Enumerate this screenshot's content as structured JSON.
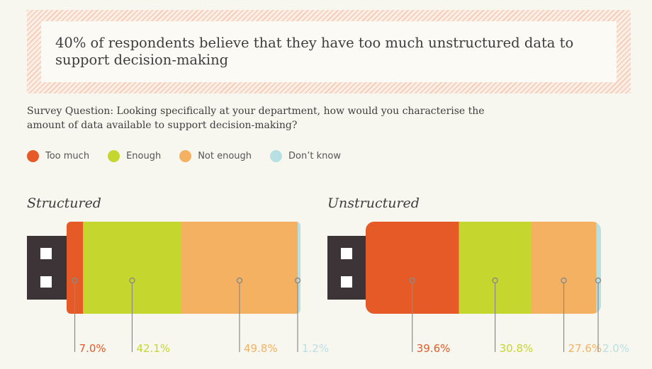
{
  "headline": "40% of respondents believe that they have too much unstructured data to support decision-making",
  "question": "Survey Question: Looking specifically at your department, how would you characterise the amount of data available to support decision-making?",
  "chart_data": {
    "type": "bar",
    "orientation": "horizontal-stacked",
    "categories": [
      "Too much",
      "Enough",
      "Not enough",
      "Don’t know"
    ],
    "colors": [
      "#e55a27",
      "#c5d62f",
      "#f4b161",
      "#b7e0e3"
    ],
    "unit": "%",
    "xlim": [
      0,
      100
    ],
    "series": [
      {
        "name": "Structured",
        "values": [
          7.0,
          42.1,
          49.8,
          1.2
        ],
        "labels": [
          "7.0%",
          "42.1%",
          "49.8%",
          "1.2%"
        ]
      },
      {
        "name": "Unstructured",
        "values": [
          39.6,
          30.8,
          27.6,
          2.0
        ],
        "labels": [
          "39.6%",
          "30.8%",
          "27.6%",
          "2.0%"
        ]
      }
    ]
  },
  "icons": {
    "connector": "usb-connector-icon"
  }
}
